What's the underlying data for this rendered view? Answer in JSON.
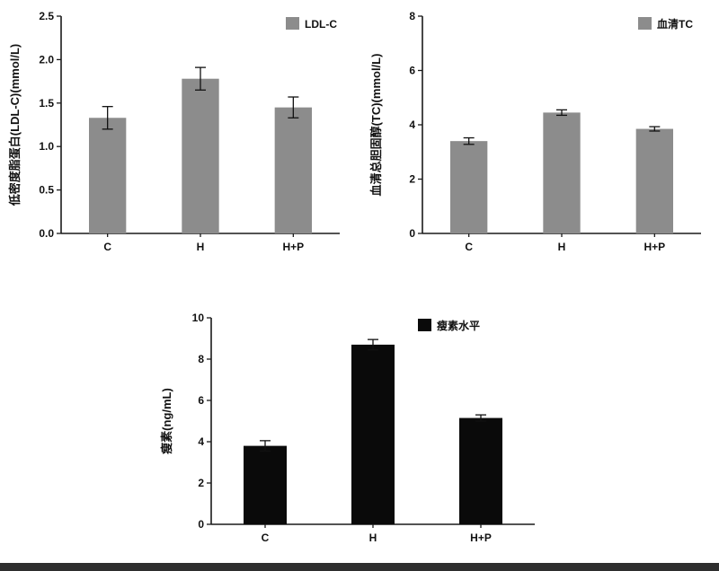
{
  "page": {
    "background": "#ffffff",
    "footer_bar_color": "#2e2e2e",
    "axis_color": "#1a1a1a",
    "text_color": "#111111"
  },
  "chart_data": [
    {
      "id": "ldl-c",
      "type": "bar",
      "title": "",
      "legend": "LDL-C",
      "legend_position": "top-right",
      "legend_inset": 60,
      "ylabel": "低密度脂蛋白(LDL-C)(mmol/L)",
      "xlabel": "",
      "categories": [
        "C",
        "H",
        "H+P"
      ],
      "values": [
        1.33,
        1.78,
        1.45
      ],
      "errors": [
        0.13,
        0.13,
        0.12
      ],
      "ymin": 0,
      "ymax": 2.5,
      "yticks": [
        0,
        0.5,
        1,
        1.5,
        2,
        2.5
      ],
      "ytick_labels": [
        "0.0",
        "0.5",
        "1.0",
        "1.5",
        "2.0",
        "2.5"
      ],
      "bar_color": "#8c8c8c",
      "grid": false
    },
    {
      "id": "serum-tc",
      "type": "bar",
      "title": "",
      "legend": "血清TC",
      "legend_position": "top-right",
      "legend_inset": 70,
      "ylabel": "血清总胆固醇(TC)(mmol/L)",
      "xlabel": "",
      "categories": [
        "C",
        "H",
        "H+P"
      ],
      "values": [
        3.4,
        4.45,
        3.85
      ],
      "errors": [
        0.12,
        0.1,
        0.08
      ],
      "ymin": 0,
      "ymax": 8,
      "yticks": [
        0,
        2,
        4,
        6,
        8
      ],
      "ytick_labels": [
        "0",
        "2",
        "4",
        "6",
        "8"
      ],
      "bar_color": "#8c8c8c",
      "grid": false
    },
    {
      "id": "leptin",
      "type": "bar",
      "title": "",
      "legend": "瘦素水平",
      "legend_position": "top-right",
      "legend_inset": 130,
      "ylabel": "瘦素(ng/mL)",
      "xlabel": "",
      "categories": [
        "C",
        "H",
        "H+P"
      ],
      "values": [
        3.8,
        8.7,
        5.15
      ],
      "errors": [
        0.25,
        0.25,
        0.15
      ],
      "ymin": 0,
      "ymax": 10,
      "yticks": [
        0,
        2,
        4,
        6,
        8,
        10
      ],
      "ytick_labels": [
        "0",
        "2",
        "4",
        "6",
        "8",
        "10"
      ],
      "bar_color": "#0a0a0a",
      "grid": false
    }
  ]
}
